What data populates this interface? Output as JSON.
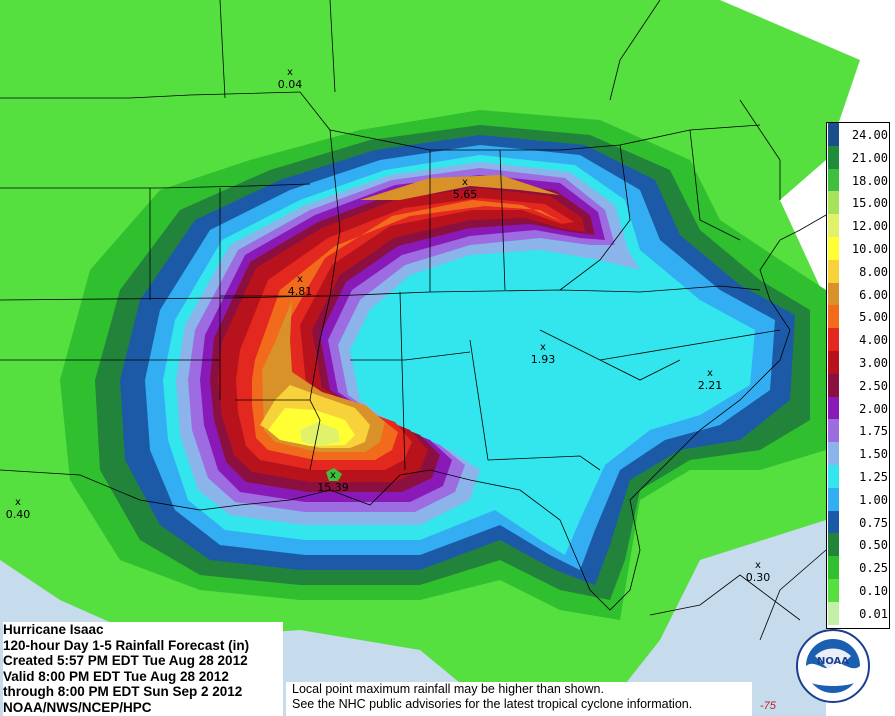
{
  "info": {
    "title": "Hurricane Isaac",
    "subtitle": "120-hour Day 1-5 Rainfall Forecast (in)",
    "created": "Created 5:57 PM EDT Tue Aug 28 2012",
    "valid": "Valid 8:00 PM EDT Tue Aug 28 2012",
    "through": "through 8:00 PM EDT Sun Sep 2 2012",
    "source": "NOAA/NWS/NCEP/HPC"
  },
  "note": {
    "line1": "Local point maximum rainfall may be higher than shown.",
    "line2": "See the NHC public advisories for the latest tropical cyclone information."
  },
  "legend": [
    {
      "value": "24.00",
      "color": "#1a4f8c"
    },
    {
      "value": "21.00",
      "color": "#1f8c3a"
    },
    {
      "value": "18.00",
      "color": "#3fbf3f"
    },
    {
      "value": "15.00",
      "color": "#a6e35a"
    },
    {
      "value": "12.00",
      "color": "#dff26a"
    },
    {
      "value": "10.00",
      "color": "#ffff33"
    },
    {
      "value": "8.00",
      "color": "#f7d23a"
    },
    {
      "value": "6.00",
      "color": "#d9922a"
    },
    {
      "value": "5.00",
      "color": "#f26a1c"
    },
    {
      "value": "4.00",
      "color": "#e2281f"
    },
    {
      "value": "3.00",
      "color": "#b8131d"
    },
    {
      "value": "2.50",
      "color": "#8b1040"
    },
    {
      "value": "2.00",
      "color": "#8a1ab8"
    },
    {
      "value": "1.75",
      "color": "#9c6ce0"
    },
    {
      "value": "1.50",
      "color": "#8ab4ea"
    },
    {
      "value": "1.25",
      "color": "#33e6ee"
    },
    {
      "value": "1.00",
      "color": "#33aef2"
    },
    {
      "value": "0.75",
      "color": "#1c5aa8"
    },
    {
      "value": "0.50",
      "color": "#22843a"
    },
    {
      "value": "0.25",
      "color": "#2fbf2f"
    },
    {
      "value": "0.10",
      "color": "#55e040"
    },
    {
      "value": "0.01",
      "color": "#c2f0a8"
    }
  ],
  "maxima": [
    {
      "label": "0.04",
      "mark": "x"
    },
    {
      "label": "5.65",
      "mark": "x"
    },
    {
      "label": "4.81",
      "mark": "x"
    },
    {
      "label": "1.93",
      "mark": "x"
    },
    {
      "label": "2.21",
      "mark": "x"
    },
    {
      "label": "15.39",
      "mark": "x"
    },
    {
      "label": "0.40",
      "mark": "x"
    },
    {
      "label": "0.30",
      "mark": "x"
    }
  ],
  "logo": {
    "text": "NOAA"
  },
  "longitude_label": "-75"
}
